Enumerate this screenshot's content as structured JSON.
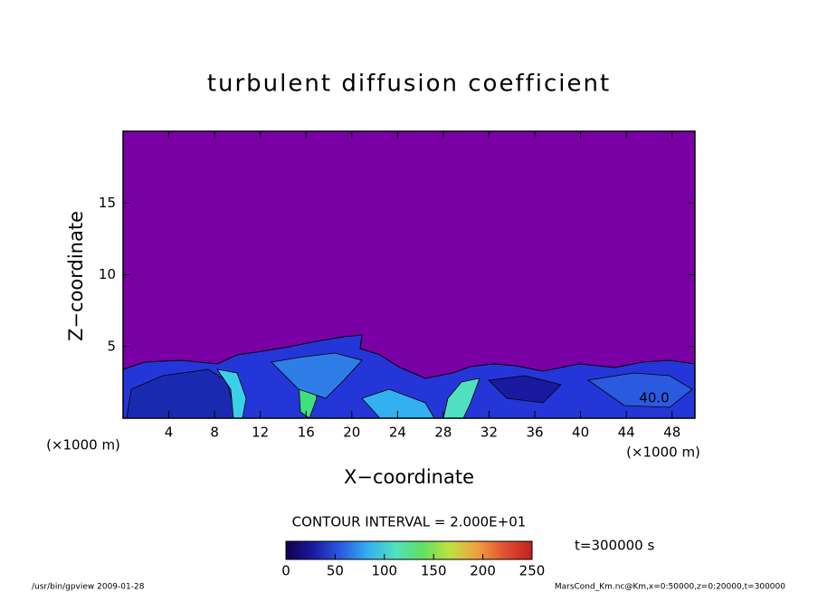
{
  "chart_data": {
    "type": "contour",
    "title": "turbulent diffusion coefficient",
    "x_label": "X−coordinate",
    "y_label": "Z−coordinate",
    "x_unit": "(×1000 m)",
    "y_unit": "(×1000 m)",
    "xlim": [
      0,
      50
    ],
    "ylim": [
      0,
      20
    ],
    "xticks": [
      4,
      8,
      12,
      16,
      20,
      24,
      28,
      32,
      36,
      40,
      44,
      48
    ],
    "yticks": [
      5,
      10,
      15
    ],
    "contour_interval": "CONTOUR INTERVAL = 2.000E+01",
    "time_label": "t=300000 s",
    "annotations": [
      "40.0"
    ],
    "background_color": "#7a00a6",
    "colorbar": {
      "lim": [
        0,
        250
      ],
      "ticks": [
        0,
        50,
        100,
        150,
        200,
        250
      ],
      "colors": [
        "#15004a",
        "#1a1aa0",
        "#2a5ae0",
        "#33b0f0",
        "#50e0c0",
        "#60e060",
        "#c0e040",
        "#f0a040",
        "#e05030",
        "#c02020"
      ]
    }
  },
  "footer": {
    "left": "/usr/bin/gpview   2009-01-28",
    "right": "MarsCond_Km.nc@Km,x=0:50000,z=0:20000,t=300000"
  }
}
